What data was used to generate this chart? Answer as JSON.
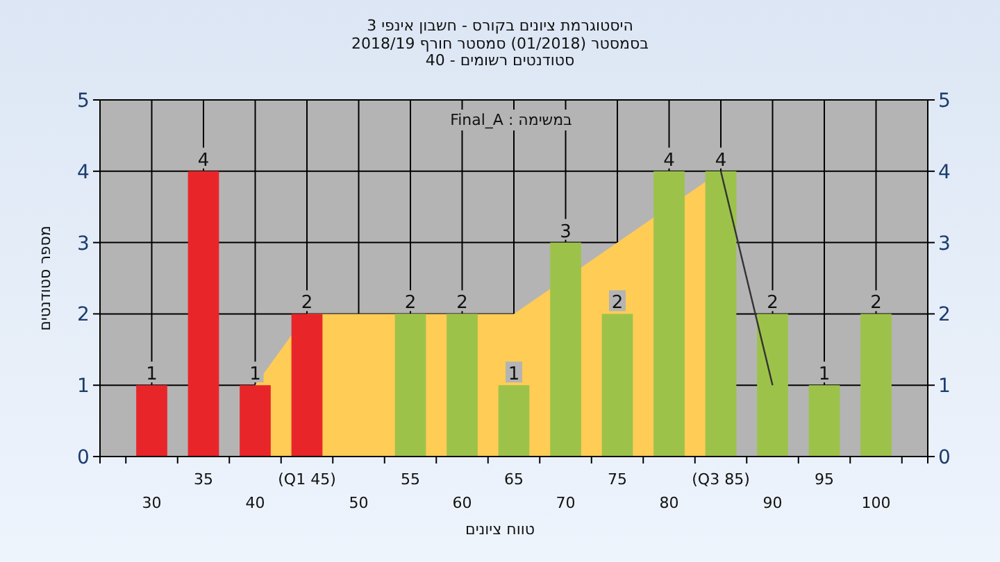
{
  "chart_data": {
    "type": "bar",
    "title": "היסטוגרמת ציונים בקורס - חשבון אינפי 3",
    "subtitle": "בסמסטר  (01/2018)  סמסטר חורף 2018/19\nסטודנטים רשומים - 40",
    "xlabel": "טווח ציונים",
    "ylabel": "מספר סטודנטים",
    "annotations": [
      "במשימה : Final_A"
    ],
    "categories": [
      "30",
      "35",
      "40",
      "(Q1 45)",
      "50",
      "55",
      "60",
      "65",
      "70",
      "75",
      "80",
      "(Q3 85)",
      "90",
      "95",
      "100"
    ],
    "series": [
      {
        "type": "area",
        "color": "#ffcc55",
        "values": [
          null,
          null,
          1,
          2,
          2,
          2,
          2,
          2,
          null,
          3,
          null,
          4,
          null,
          null,
          null
        ]
      },
      {
        "type": "line",
        "color": "#333333",
        "values": [
          null,
          null,
          null,
          null,
          null,
          null,
          null,
          null,
          null,
          null,
          null,
          4,
          1,
          null,
          null
        ]
      },
      {
        "type": "bar",
        "colors": [
          "#e8262a",
          "#e8262a",
          "#e8262a",
          "#e8262a",
          "#9dc24a",
          "#9dc24a",
          "#9dc24a",
          "#9dc24a",
          "#9dc24a",
          "#9dc24a",
          "#9dc24a",
          "#9dc24a",
          "#9dc24a",
          "#9dc24a",
          "#9dc24a"
        ],
        "values": [
          1,
          4,
          1,
          2,
          0,
          2,
          2,
          1,
          3,
          2,
          4,
          4,
          2,
          1,
          2
        ],
        "value_labels": [
          "1",
          "4",
          "1",
          "2",
          null,
          "2",
          "2",
          "1",
          "3",
          "2",
          "4",
          "4",
          "2",
          "1",
          "2"
        ]
      }
    ],
    "ylim": [
      0,
      5
    ],
    "yticks": [
      0,
      1,
      2,
      3,
      4,
      5
    ],
    "y2lim": [
      0,
      5
    ],
    "y2ticks": [
      0,
      1,
      2,
      3,
      4,
      5
    ],
    "grid": true
  }
}
